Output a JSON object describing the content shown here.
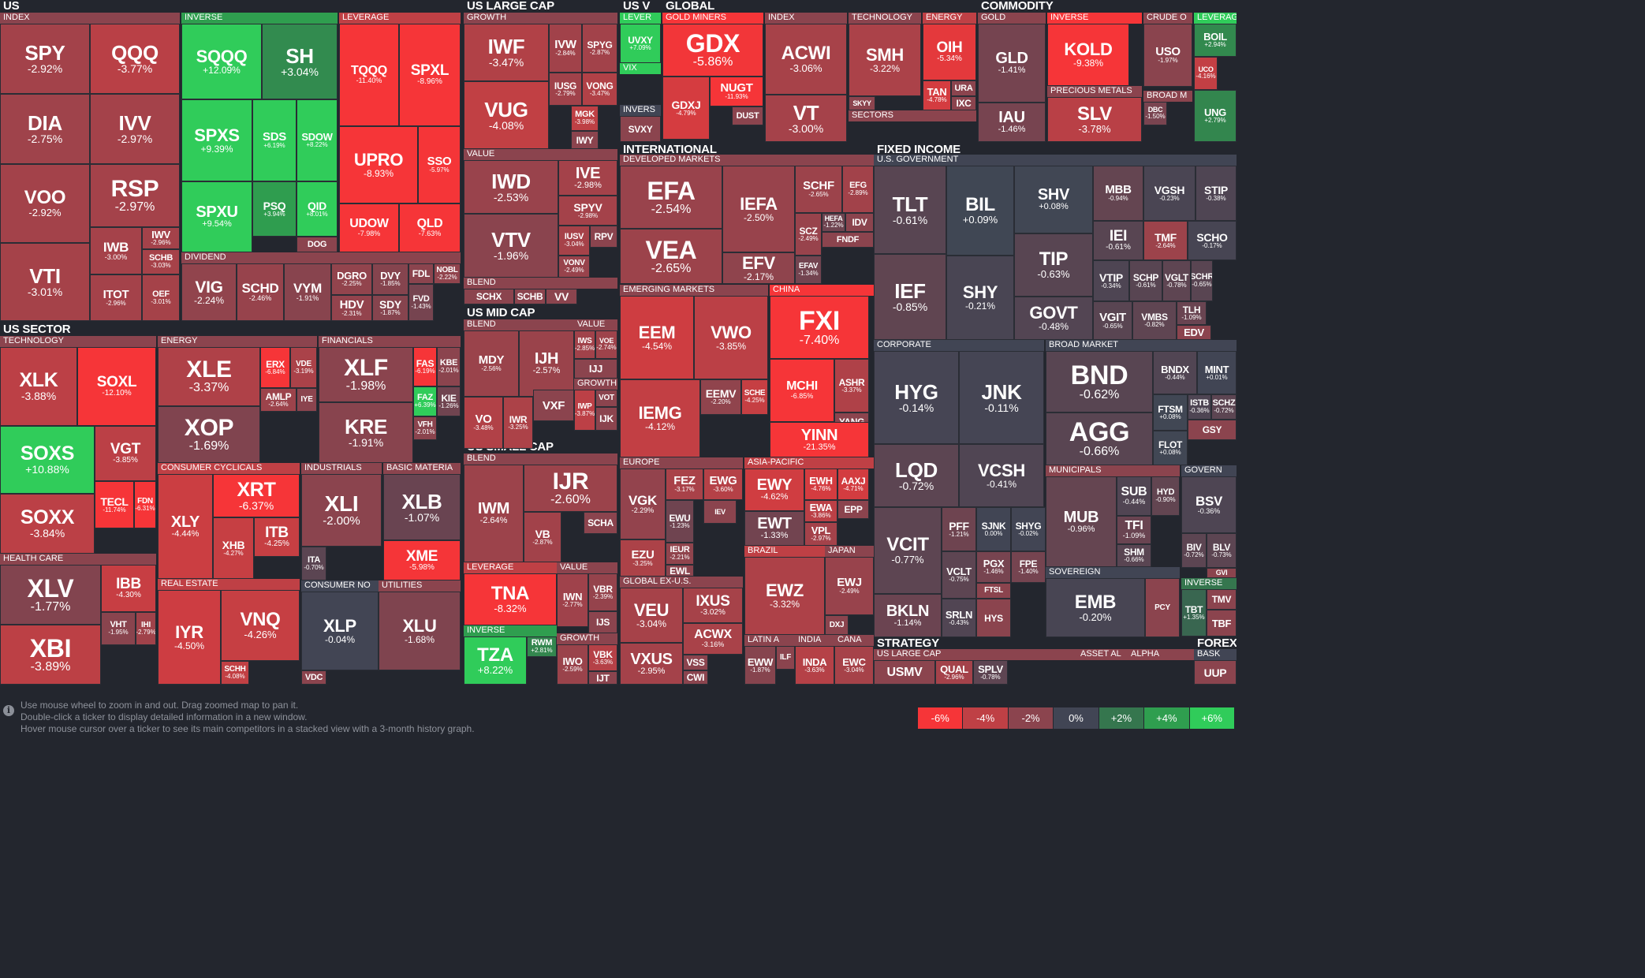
{
  "footer": {
    "help_lines": [
      "Use mouse wheel to zoom in and out. Drag zoomed map to pan it.",
      "Double-click a ticker to display detailed information in a new window.",
      "Hover mouse cursor over a ticker to see its main competitors in a stacked view with a 3-month history graph."
    ],
    "legend": [
      {
        "label": "-6%",
        "color": "#f63538"
      },
      {
        "label": "-4%",
        "color": "#bf4045"
      },
      {
        "label": "-2%",
        "color": "#8b444e"
      },
      {
        "label": "0%",
        "color": "#414554"
      },
      {
        "label": "+2%",
        "color": "#35764e"
      },
      {
        "label": "+4%",
        "color": "#2f9e4f"
      },
      {
        "label": "+6%",
        "color": "#30cc5a"
      }
    ]
  },
  "chart_data": {
    "type": "treemap",
    "headers": {
      "us": "US",
      "us_sector": "US SECTOR",
      "us_large_cap": "US LARGE CAP",
      "us_mid_cap": "US MID CAP",
      "us_small_cap": "US SMALL CAP",
      "us_v": "US V",
      "global": "GLOBAL",
      "commodity": "COMMODITY",
      "international": "INTERNATIONAL",
      "fixed_income": "FIXED INCOME",
      "strategy": "STRATEGY",
      "forex": "FOREX"
    },
    "groups": {
      "index": "INDEX",
      "inverse": "INVERSE",
      "leverage": "LEVERAGE",
      "dividend": "DIVIDEND",
      "technology": "TECHNOLOGY",
      "energy": "ENERGY",
      "financials": "FINANCIALS",
      "consumer_cyclicals": "CONSUMER CYCLICALS",
      "industrials": "INDUSTRIALS",
      "basic_materia": "BASIC MATERIA",
      "health_care": "HEALTH CARE",
      "real_estate": "REAL ESTATE",
      "consumer_no": "CONSUMER NO",
      "utilities": "UTILITIES",
      "growth": "GROWTH",
      "value": "VALUE",
      "blend": "BLEND",
      "lever": "LEVER",
      "vix": "VIX",
      "invers": "INVERS",
      "gold_miners": "GOLD MINERS",
      "sectors": "SECTORS",
      "gold": "GOLD",
      "crude_o": "CRUDE O",
      "precious_metals": "PRECIOUS METALS",
      "broad_m": "BROAD M",
      "developed_markets": "DEVELOPED MARKETS",
      "emerging_markets": "EMERGING MARKETS",
      "china": "CHINA",
      "europe": "EUROPE",
      "asia_pacific": "ASIA-PACIFIC",
      "brazil": "BRAZIL",
      "japan": "JAPAN",
      "global_ex_us": "GLOBAL EX-U.S.",
      "latin_a": "LATIN A",
      "india": "INDIA",
      "cana": "CANA",
      "us_government": "U.S. GOVERNMENT",
      "corporate": "CORPORATE",
      "broad_market": "BROAD MARKET",
      "municipals": "MUNICIPALS",
      "govern": "GOVERN",
      "sovereign": "SOVEREIGN",
      "us_large_cap_s": "US LARGE CAP",
      "asset_al": "ASSET AL",
      "alpha": "ALPHA",
      "bask": "BASK"
    },
    "items": [
      {
        "t": "SPY",
        "v": -2.92
      },
      {
        "t": "QQQ",
        "v": -3.77
      },
      {
        "t": "DIA",
        "v": -2.75
      },
      {
        "t": "IVV",
        "v": -2.97
      },
      {
        "t": "VOO",
        "v": -2.92
      },
      {
        "t": "RSP",
        "v": -2.97
      },
      {
        "t": "IWB",
        "v": -3.0
      },
      {
        "t": "IWV",
        "v": -2.96
      },
      {
        "t": "SCHB",
        "v": -3.03
      },
      {
        "t": "VTI",
        "v": -3.01
      },
      {
        "t": "ITOT",
        "v": -2.96
      },
      {
        "t": "OEF",
        "v": -3.01
      },
      {
        "t": "SQQQ",
        "v": 12.09
      },
      {
        "t": "SH",
        "v": 3.04
      },
      {
        "t": "SPXS",
        "v": 9.39
      },
      {
        "t": "SDS",
        "v": 6.19
      },
      {
        "t": "SDOW",
        "v": 8.22
      },
      {
        "t": "SPXU",
        "v": 9.54
      },
      {
        "t": "PSQ",
        "v": 3.94
      },
      {
        "t": "QID",
        "v": 8.01
      },
      {
        "t": "DOG",
        "v": null
      },
      {
        "t": "TQQQ",
        "v": -11.4
      },
      {
        "t": "SPXL",
        "v": -8.96
      },
      {
        "t": "UPRO",
        "v": -8.93
      },
      {
        "t": "SSO",
        "v": -5.97
      },
      {
        "t": "UDOW",
        "v": -7.98
      },
      {
        "t": "QLD",
        "v": -7.63
      },
      {
        "t": "VIG",
        "v": -2.24
      },
      {
        "t": "SCHD",
        "v": -2.46
      },
      {
        "t": "VYM",
        "v": -1.91
      },
      {
        "t": "DGRO",
        "v": -2.25
      },
      {
        "t": "DVY",
        "v": -1.85
      },
      {
        "t": "FDL",
        "v": null
      },
      {
        "t": "NOBL",
        "v": -2.22
      },
      {
        "t": "HDV",
        "v": -2.31
      },
      {
        "t": "SDY",
        "v": -1.87
      },
      {
        "t": "FVD",
        "v": -1.43
      },
      {
        "t": "XLK",
        "v": -3.88
      },
      {
        "t": "SOXL",
        "v": -12.1
      },
      {
        "t": "SOXS",
        "v": 10.88
      },
      {
        "t": "VGT",
        "v": -3.85
      },
      {
        "t": "SOXX",
        "v": -3.84
      },
      {
        "t": "TECL",
        "v": -11.74
      },
      {
        "t": "FDN",
        "v": -6.31
      },
      {
        "t": "XLE",
        "v": -3.37
      },
      {
        "t": "ERX",
        "v": -6.84
      },
      {
        "t": "VDE",
        "v": -3.19
      },
      {
        "t": "AMLP",
        "v": -2.64
      },
      {
        "t": "IYE",
        "v": null
      },
      {
        "t": "XOP",
        "v": -1.69
      },
      {
        "t": "XLF",
        "v": -1.98
      },
      {
        "t": "FAS",
        "v": -6.19
      },
      {
        "t": "KBE",
        "v": -2.01
      },
      {
        "t": "FAZ",
        "v": 6.39
      },
      {
        "t": "KIE",
        "v": -1.26
      },
      {
        "t": "KRE",
        "v": -1.91
      },
      {
        "t": "VFH",
        "v": -2.01
      },
      {
        "t": "XLY",
        "v": -4.44
      },
      {
        "t": "XRT",
        "v": -6.37
      },
      {
        "t": "ITB",
        "v": -4.25
      },
      {
        "t": "XHB",
        "v": -4.27
      },
      {
        "t": "XLI",
        "v": -2.0
      },
      {
        "t": "ITA",
        "v": -0.7
      },
      {
        "t": "XLB",
        "v": -1.07
      },
      {
        "t": "XME",
        "v": -5.98
      },
      {
        "t": "XLV",
        "v": -1.77
      },
      {
        "t": "IBB",
        "v": -4.3
      },
      {
        "t": "XBI",
        "v": -3.89
      },
      {
        "t": "VHT",
        "v": -1.95
      },
      {
        "t": "IHI",
        "v": -2.79
      },
      {
        "t": "IYR",
        "v": -4.5
      },
      {
        "t": "VNQ",
        "v": -4.26
      },
      {
        "t": "SCHH",
        "v": -4.08
      },
      {
        "t": "XLP",
        "v": -0.04
      },
      {
        "t": "VDC",
        "v": null
      },
      {
        "t": "XLU",
        "v": -1.68
      },
      {
        "t": "IWF",
        "v": -3.47
      },
      {
        "t": "IVW",
        "v": -2.84
      },
      {
        "t": "SPYG",
        "v": -2.87
      },
      {
        "t": "IUSG",
        "v": -2.79
      },
      {
        "t": "VONG",
        "v": -3.47
      },
      {
        "t": "VUG",
        "v": -4.08
      },
      {
        "t": "MGK",
        "v": -3.98
      },
      {
        "t": "IWY",
        "v": null
      },
      {
        "t": "IWD",
        "v": -2.53
      },
      {
        "t": "IVE",
        "v": -2.98
      },
      {
        "t": "SPYV",
        "v": -2.98
      },
      {
        "t": "VTV",
        "v": -1.96
      },
      {
        "t": "IUSV",
        "v": -3.04
      },
      {
        "t": "RPV",
        "v": null
      },
      {
        "t": "VONV",
        "v": -2.49
      },
      {
        "t": "SCHX",
        "v": null
      },
      {
        "t": "SCHB",
        "v": null
      },
      {
        "t": "VV",
        "v": null
      },
      {
        "t": "MDY",
        "v": -2.56
      },
      {
        "t": "IJH",
        "v": -2.57
      },
      {
        "t": "IWS",
        "v": -2.85
      },
      {
        "t": "VOE",
        "v": -2.74
      },
      {
        "t": "IJJ",
        "v": null
      },
      {
        "t": "VO",
        "v": -3.48
      },
      {
        "t": "IWR",
        "v": -3.25
      },
      {
        "t": "VXF",
        "v": null
      },
      {
        "t": "IWP",
        "v": -3.87
      },
      {
        "t": "VOT",
        "v": null
      },
      {
        "t": "IJK",
        "v": null
      },
      {
        "t": "IWM",
        "v": -2.64
      },
      {
        "t": "IJR",
        "v": -2.6
      },
      {
        "t": "VB",
        "v": -2.87
      },
      {
        "t": "SCHA",
        "v": null
      },
      {
        "t": "TNA",
        "v": -8.32
      },
      {
        "t": "IWN",
        "v": -2.77
      },
      {
        "t": "VBR",
        "v": -2.39
      },
      {
        "t": "IJS",
        "v": null
      },
      {
        "t": "TZA",
        "v": 8.22
      },
      {
        "t": "RWM",
        "v": 2.81
      },
      {
        "t": "IWO",
        "v": -2.59
      },
      {
        "t": "VBK",
        "v": -3.63
      },
      {
        "t": "IJT",
        "v": null
      },
      {
        "t": "UVXY",
        "v": 7.09
      },
      {
        "t": "SVXY",
        "v": null
      },
      {
        "t": "GDX",
        "v": -5.86
      },
      {
        "t": "GDXJ",
        "v": -4.79
      },
      {
        "t": "NUGT",
        "v": -11.93
      },
      {
        "t": "DUST",
        "v": null
      },
      {
        "t": "ACWI",
        "v": -3.06
      },
      {
        "t": "VT",
        "v": -3.0
      },
      {
        "t": "SMH",
        "v": -3.22
      },
      {
        "t": "SKYY",
        "v": null
      },
      {
        "t": "OIH",
        "v": -5.34
      },
      {
        "t": "TAN",
        "v": -4.78
      },
      {
        "t": "URA",
        "v": null
      },
      {
        "t": "IXC",
        "v": null
      },
      {
        "t": "GLD",
        "v": -1.41
      },
      {
        "t": "IAU",
        "v": -1.46
      },
      {
        "t": "KOLD",
        "v": -9.38
      },
      {
        "t": "SLV",
        "v": -3.78
      },
      {
        "t": "USO",
        "v": -1.97
      },
      {
        "t": "BOIL",
        "v": 2.94
      },
      {
        "t": "UCO",
        "v": -4.16
      },
      {
        "t": "DBC",
        "v": -1.5
      },
      {
        "t": "UNG",
        "v": 2.79
      },
      {
        "t": "EFA",
        "v": -2.54
      },
      {
        "t": "IEFA",
        "v": -2.5
      },
      {
        "t": "SCHF",
        "v": -2.65
      },
      {
        "t": "EFG",
        "v": -2.89
      },
      {
        "t": "VEA",
        "v": -2.65
      },
      {
        "t": "SCZ",
        "v": -2.49
      },
      {
        "t": "HEFA",
        "v": -1.22
      },
      {
        "t": "IDV",
        "v": null
      },
      {
        "t": "FNDF",
        "v": null
      },
      {
        "t": "EFV",
        "v": -2.17
      },
      {
        "t": "EFAV",
        "v": -1.34
      },
      {
        "t": "EEM",
        "v": -4.54
      },
      {
        "t": "VWO",
        "v": -3.85
      },
      {
        "t": "IEMG",
        "v": -4.12
      },
      {
        "t": "EEMV",
        "v": -2.2
      },
      {
        "t": "SCHE",
        "v": -4.25
      },
      {
        "t": "FXI",
        "v": -7.4
      },
      {
        "t": "MCHI",
        "v": -6.85
      },
      {
        "t": "ASHR",
        "v": -3.37
      },
      {
        "t": "YANG",
        "v": null
      },
      {
        "t": "YINN",
        "v": -21.35
      },
      {
        "t": "VGK",
        "v": -2.29
      },
      {
        "t": "FEZ",
        "v": -3.17
      },
      {
        "t": "EWG",
        "v": -3.6
      },
      {
        "t": "EWU",
        "v": -1.23
      },
      {
        "t": "IEV",
        "v": null
      },
      {
        "t": "EZU",
        "v": -3.25
      },
      {
        "t": "IEUR",
        "v": -2.21
      },
      {
        "t": "EWL",
        "v": null
      },
      {
        "t": "EWY",
        "v": -4.62
      },
      {
        "t": "EWH",
        "v": -4.76
      },
      {
        "t": "AAXJ",
        "v": -4.71
      },
      {
        "t": "EWA",
        "v": -3.86
      },
      {
        "t": "EPP",
        "v": null
      },
      {
        "t": "EWT",
        "v": -1.33
      },
      {
        "t": "VPL",
        "v": -2.97
      },
      {
        "t": "EWZ",
        "v": -3.32
      },
      {
        "t": "EWJ",
        "v": -2.49
      },
      {
        "t": "DXJ",
        "v": null
      },
      {
        "t": "VEU",
        "v": -3.04
      },
      {
        "t": "IXUS",
        "v": -3.02
      },
      {
        "t": "ACWX",
        "v": -3.16
      },
      {
        "t": "VXUS",
        "v": -2.95
      },
      {
        "t": "VSS",
        "v": null
      },
      {
        "t": "CWI",
        "v": null
      },
      {
        "t": "EWW",
        "v": -1.87
      },
      {
        "t": "ILF",
        "v": null
      },
      {
        "t": "INDA",
        "v": -3.63
      },
      {
        "t": "EWC",
        "v": -3.04
      },
      {
        "t": "TLT",
        "v": -0.61
      },
      {
        "t": "BIL",
        "v": 0.09
      },
      {
        "t": "SHV",
        "v": 0.08
      },
      {
        "t": "MBB",
        "v": -0.94
      },
      {
        "t": "VGSH",
        "v": -0.23
      },
      {
        "t": "STIP",
        "v": -0.38
      },
      {
        "t": "IEI",
        "v": -0.61
      },
      {
        "t": "TMF",
        "v": -2.64
      },
      {
        "t": "SCHO",
        "v": -0.17
      },
      {
        "t": "TIP",
        "v": -0.63
      },
      {
        "t": "VTIP",
        "v": -0.34
      },
      {
        "t": "SCHP",
        "v": -0.61
      },
      {
        "t": "VGLT",
        "v": -0.78
      },
      {
        "t": "SCHR",
        "v": -0.65
      },
      {
        "t": "IEF",
        "v": -0.85
      },
      {
        "t": "SHY",
        "v": -0.21
      },
      {
        "t": "TLH",
        "v": -1.09
      },
      {
        "t": "GOVT",
        "v": -0.48
      },
      {
        "t": "VGIT",
        "v": -0.65
      },
      {
        "t": "VMBS",
        "v": -0.82
      },
      {
        "t": "EDV",
        "v": null
      },
      {
        "t": "HYG",
        "v": -0.14
      },
      {
        "t": "JNK",
        "v": -0.11
      },
      {
        "t": "LQD",
        "v": -0.72
      },
      {
        "t": "VCSH",
        "v": -0.41
      },
      {
        "t": "VCIT",
        "v": -0.77
      },
      {
        "t": "PFF",
        "v": -1.21
      },
      {
        "t": "SJNK",
        "v": 0.0
      },
      {
        "t": "SHYG",
        "v": -0.02
      },
      {
        "t": "PGX",
        "v": -1.46
      },
      {
        "t": "FPE",
        "v": -1.4
      },
      {
        "t": "VCLT",
        "v": -0.75
      },
      {
        "t": "FTSL",
        "v": null
      },
      {
        "t": "BKLN",
        "v": -1.14
      },
      {
        "t": "SRLN",
        "v": -0.43
      },
      {
        "t": "HYS",
        "v": null
      },
      {
        "t": "BND",
        "v": -0.62
      },
      {
        "t": "BNDX",
        "v": -0.44
      },
      {
        "t": "MINT",
        "v": 0.01
      },
      {
        "t": "AGG",
        "v": -0.66
      },
      {
        "t": "FTSM",
        "v": 0.08
      },
      {
        "t": "ISTB",
        "v": -0.36
      },
      {
        "t": "SCHZ",
        "v": -0.72
      },
      {
        "t": "GSY",
        "v": null
      },
      {
        "t": "FLOT",
        "v": 0.08
      },
      {
        "t": "MUB",
        "v": -0.96
      },
      {
        "t": "SUB",
        "v": -0.44
      },
      {
        "t": "HYD",
        "v": -0.9
      },
      {
        "t": "TFI",
        "v": -1.09
      },
      {
        "t": "SHM",
        "v": -0.66
      },
      {
        "t": "BSV",
        "v": -0.36
      },
      {
        "t": "BIV",
        "v": -0.72
      },
      {
        "t": "BLV",
        "v": -0.73
      },
      {
        "t": "GVI",
        "v": null
      },
      {
        "t": "EMB",
        "v": -0.2
      },
      {
        "t": "PCY",
        "v": null
      },
      {
        "t": "TBT",
        "v": 1.35
      },
      {
        "t": "TMV",
        "v": null
      },
      {
        "t": "TBF",
        "v": null
      },
      {
        "t": "USMV",
        "v": null
      },
      {
        "t": "QUAL",
        "v": -2.96
      },
      {
        "t": "SPLV",
        "v": -0.78
      },
      {
        "t": "UUP",
        "v": null
      }
    ]
  }
}
